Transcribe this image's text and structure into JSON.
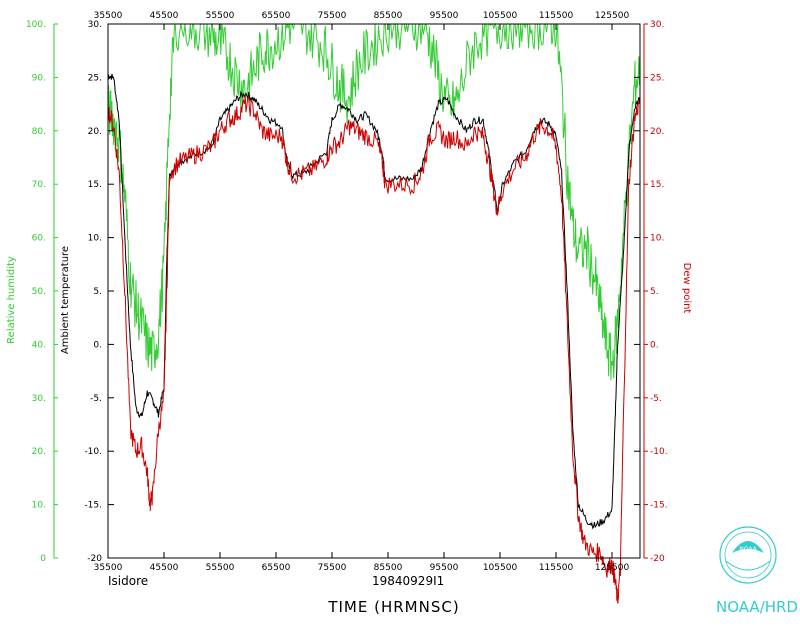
{
  "chart_data": {
    "type": "line",
    "xlabel": "TIME (HRMNSC)",
    "storm_name": "Isidore",
    "flight_id": "19840929I1",
    "footer": "NOAA/HRD",
    "logo_text": "NOAA",
    "x_ticks": [
      "35500",
      "45500",
      "55500",
      "65500",
      "75500",
      "85500",
      "95500",
      "105500",
      "115500",
      "125500"
    ],
    "x_tick_values": [
      35500,
      45500,
      55500,
      65500,
      75500,
      85500,
      95500,
      105500,
      115500,
      125500
    ],
    "xlim": [
      35500,
      130500
    ],
    "y_left_outer": {
      "label": "Relative humidity",
      "ylim": [
        0,
        100
      ],
      "ticks": [
        "0",
        "10.",
        "20.",
        "30.",
        "40.",
        "50.",
        "60.",
        "70.",
        "80.",
        "90.",
        "100."
      ],
      "color": "#33cc33"
    },
    "y_left_inner": {
      "label": "Ambient temperature",
      "ylim": [
        -20,
        30
      ],
      "ticks": [
        "-20",
        "-15.",
        "-10.",
        "-5.",
        "0.",
        "5.",
        "10.",
        "15.",
        "20.",
        "25.",
        "30."
      ],
      "color": "#000000"
    },
    "y_right": {
      "label": "Dew point",
      "ylim": [
        -20,
        30
      ],
      "ticks": [
        "-20",
        "-15.",
        "-10.",
        "-5.",
        "0.",
        "5.",
        "10.",
        "15.",
        "20.",
        "25.",
        "30."
      ],
      "color": "#cc0000"
    },
    "series": [
      {
        "axis": "temperature",
        "color": "#000000",
        "points": [
          [
            35500,
            25.2
          ],
          [
            36500,
            25
          ],
          [
            37500,
            21
          ],
          [
            38500,
            10
          ],
          [
            39500,
            0
          ],
          [
            40500,
            -6
          ],
          [
            41500,
            -6.8
          ],
          [
            42500,
            -4.5
          ],
          [
            43500,
            -5.2
          ],
          [
            44500,
            -6.5
          ],
          [
            45500,
            -4
          ],
          [
            46000,
            8
          ],
          [
            46500,
            16
          ],
          [
            48000,
            17
          ],
          [
            50000,
            17.5
          ],
          [
            52000,
            18
          ],
          [
            54000,
            18.5
          ],
          [
            55500,
            21
          ],
          [
            57000,
            22
          ],
          [
            58500,
            23
          ],
          [
            60000,
            23.5
          ],
          [
            61500,
            23
          ],
          [
            63000,
            22
          ],
          [
            64500,
            21
          ],
          [
            66500,
            20.5
          ],
          [
            67500,
            17
          ],
          [
            68500,
            15.8
          ],
          [
            70500,
            16
          ],
          [
            72500,
            17
          ],
          [
            74500,
            18
          ],
          [
            75500,
            21
          ],
          [
            77000,
            22.5
          ],
          [
            78500,
            22
          ],
          [
            80000,
            21
          ],
          [
            81500,
            21.5
          ],
          [
            83500,
            20
          ],
          [
            84500,
            18
          ],
          [
            85000,
            15.5
          ],
          [
            87500,
            15.5
          ],
          [
            90000,
            15.5
          ],
          [
            91500,
            16.5
          ],
          [
            93000,
            20
          ],
          [
            94500,
            22.5
          ],
          [
            96000,
            23
          ],
          [
            97500,
            21.5
          ],
          [
            99500,
            20
          ],
          [
            101000,
            21
          ],
          [
            102500,
            21
          ],
          [
            103500,
            18
          ],
          [
            104500,
            14.5
          ],
          [
            105000,
            12.5
          ],
          [
            106000,
            15
          ],
          [
            108000,
            17
          ],
          [
            110000,
            18
          ],
          [
            111500,
            20
          ],
          [
            113000,
            21
          ],
          [
            114500,
            20.5
          ],
          [
            115500,
            19.5
          ],
          [
            116500,
            16
          ],
          [
            117500,
            5
          ],
          [
            118500,
            -8
          ],
          [
            119500,
            -15
          ],
          [
            121000,
            -16.5
          ],
          [
            122500,
            -17
          ],
          [
            124000,
            -16.5
          ],
          [
            125500,
            -15.5
          ],
          [
            126000,
            -8
          ],
          [
            126500,
            0
          ],
          [
            127500,
            8
          ],
          [
            128500,
            18
          ],
          [
            129500,
            22
          ],
          [
            130500,
            23
          ]
        ]
      },
      {
        "axis": "temperature",
        "color": "#cc0000",
        "points": [
          [
            35500,
            22
          ],
          [
            36500,
            20.5
          ],
          [
            37500,
            16
          ],
          [
            38500,
            5
          ],
          [
            39500,
            -8
          ],
          [
            40500,
            -10
          ],
          [
            41500,
            -9.5
          ],
          [
            42500,
            -12
          ],
          [
            43000,
            -15
          ],
          [
            43500,
            -14
          ],
          [
            44500,
            -8
          ],
          [
            45500,
            -5
          ],
          [
            46000,
            5
          ],
          [
            46500,
            16
          ],
          [
            48000,
            17
          ],
          [
            50000,
            17.5
          ],
          [
            52000,
            18
          ],
          [
            54000,
            18.5
          ],
          [
            55500,
            20
          ],
          [
            57000,
            21
          ],
          [
            58500,
            21.5
          ],
          [
            60000,
            22.5
          ],
          [
            61500,
            22
          ],
          [
            63000,
            20
          ],
          [
            64500,
            19.5
          ],
          [
            66500,
            19.5
          ],
          [
            67500,
            17
          ],
          [
            68500,
            15.8
          ],
          [
            70500,
            16
          ],
          [
            72500,
            16.5
          ],
          [
            74500,
            17.5
          ],
          [
            75500,
            18.5
          ],
          [
            77000,
            19
          ],
          [
            78500,
            20.5
          ],
          [
            80000,
            20
          ],
          [
            81500,
            19.5
          ],
          [
            83500,
            19
          ],
          [
            84500,
            17
          ],
          [
            85000,
            15
          ],
          [
            87500,
            15
          ],
          [
            90000,
            15
          ],
          [
            91500,
            16
          ],
          [
            93000,
            19.5
          ],
          [
            94500,
            20
          ],
          [
            96000,
            19
          ],
          [
            97500,
            19.5
          ],
          [
            99500,
            18.5
          ],
          [
            101000,
            20
          ],
          [
            102500,
            19.5
          ],
          [
            103500,
            17
          ],
          [
            104500,
            14
          ],
          [
            105000,
            12.5
          ],
          [
            106000,
            14.5
          ],
          [
            108000,
            16.5
          ],
          [
            110000,
            17.5
          ],
          [
            111500,
            19.5
          ],
          [
            113000,
            20.5
          ],
          [
            114500,
            20
          ],
          [
            115500,
            18.5
          ],
          [
            116500,
            14
          ],
          [
            117500,
            2
          ],
          [
            118500,
            -10
          ],
          [
            119500,
            -16
          ],
          [
            120500,
            -18.5
          ],
          [
            122000,
            -19.5
          ],
          [
            123500,
            -19.5
          ],
          [
            124500,
            -21
          ],
          [
            125500,
            -20.5
          ],
          [
            126000,
            -22
          ],
          [
            126500,
            -24
          ],
          [
            127000,
            -21
          ],
          [
            127500,
            -8
          ],
          [
            128500,
            15
          ],
          [
            129500,
            21
          ],
          [
            130500,
            23
          ]
        ]
      },
      {
        "axis": "humidity",
        "color": "#33cc33",
        "points": [
          [
            35500,
            84
          ],
          [
            36500,
            82
          ],
          [
            37500,
            78
          ],
          [
            38500,
            68
          ],
          [
            39500,
            52
          ],
          [
            40500,
            47
          ],
          [
            41500,
            44
          ],
          [
            42500,
            40
          ],
          [
            43500,
            38
          ],
          [
            44500,
            42
          ],
          [
            45500,
            55
          ],
          [
            46500,
            85
          ],
          [
            47500,
            100
          ],
          [
            50000,
            100
          ],
          [
            52000,
            99
          ],
          [
            54000,
            98
          ],
          [
            55500,
            96
          ],
          [
            57000,
            94
          ],
          [
            58500,
            90
          ],
          [
            60000,
            88
          ],
          [
            61500,
            91
          ],
          [
            63000,
            95
          ],
          [
            64500,
            96
          ],
          [
            66500,
            98
          ],
          [
            68000,
            100
          ],
          [
            70000,
            100
          ],
          [
            72000,
            98
          ],
          [
            74000,
            96
          ],
          [
            75500,
            92
          ],
          [
            77000,
            88
          ],
          [
            78500,
            86
          ],
          [
            80000,
            92
          ],
          [
            82000,
            95
          ],
          [
            84000,
            98
          ],
          [
            86000,
            100
          ],
          [
            88000,
            100
          ],
          [
            90000,
            100
          ],
          [
            92000,
            100
          ],
          [
            93500,
            95
          ],
          [
            95000,
            88
          ],
          [
            96500,
            84
          ],
          [
            98000,
            86
          ],
          [
            100000,
            94
          ],
          [
            102000,
            98
          ],
          [
            104000,
            99
          ],
          [
            106000,
            100
          ],
          [
            108000,
            100
          ],
          [
            110000,
            100
          ],
          [
            112000,
            100
          ],
          [
            114000,
            100
          ],
          [
            115500,
            100
          ],
          [
            116500,
            88
          ],
          [
            117500,
            72
          ],
          [
            118500,
            62
          ],
          [
            119500,
            57
          ],
          [
            121000,
            58
          ],
          [
            122500,
            52
          ],
          [
            123500,
            46
          ],
          [
            124500,
            40
          ],
          [
            125500,
            36
          ],
          [
            126500,
            44
          ],
          [
            127500,
            60
          ],
          [
            128500,
            75
          ],
          [
            129500,
            88
          ],
          [
            130500,
            92
          ]
        ]
      }
    ]
  }
}
